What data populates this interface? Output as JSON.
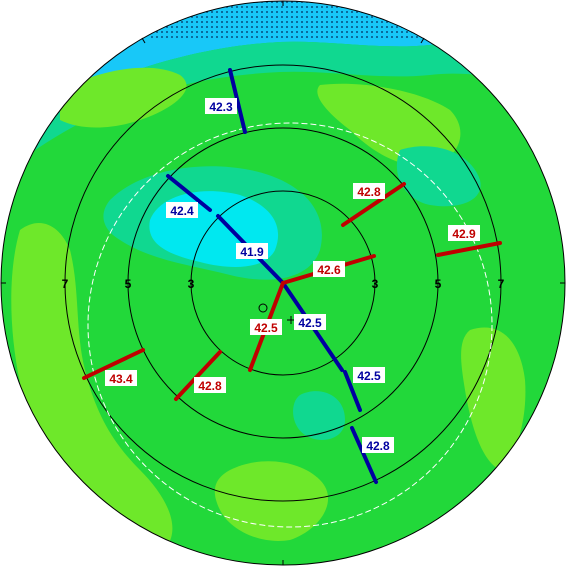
{
  "colors": {
    "flat_blue": "#0000a0",
    "steep_red": "#c00000",
    "label_bg": "#ffffff",
    "field_green": "#22d83a",
    "light_green": "#6ee82a",
    "teal": "#10d890",
    "cyan": "#00e8f0",
    "sky": "#18c8f8"
  },
  "ring_labels": [
    "7",
    "5",
    "3",
    "3",
    "5",
    "7"
  ],
  "meridians": {
    "flat": [
      {
        "id": "flat-outer-top",
        "value": "42.3"
      },
      {
        "id": "flat-mid-topleft",
        "value": "42.4"
      },
      {
        "id": "flat-inner-topleft",
        "value": "41.9"
      },
      {
        "id": "flat-center",
        "value": "42.5"
      },
      {
        "id": "flat-inner-bottomright",
        "value": "42.5"
      },
      {
        "id": "flat-outer-bottomright",
        "value": "42.8"
      }
    ],
    "steep": [
      {
        "id": "steep-mid-topright",
        "value": "42.8"
      },
      {
        "id": "steep-outer-right",
        "value": "42.9"
      },
      {
        "id": "steep-inner-right",
        "value": "42.6"
      },
      {
        "id": "steep-center",
        "value": "42.5"
      },
      {
        "id": "steep-mid-bottomleft",
        "value": "42.8"
      },
      {
        "id": "steep-outer-left",
        "value": "43.4"
      }
    ]
  }
}
